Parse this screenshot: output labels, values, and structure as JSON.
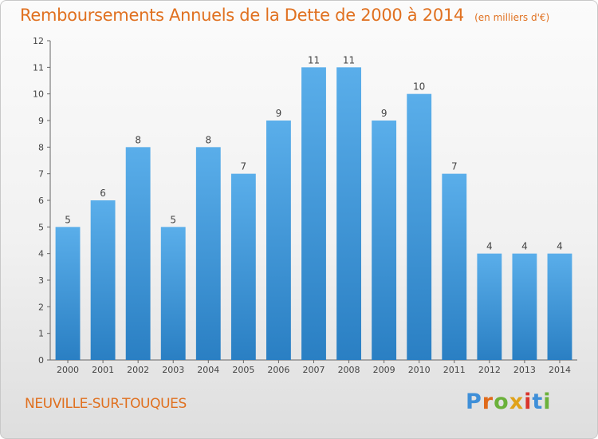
{
  "chart_data": {
    "type": "bar",
    "title": "Remboursements Annuels de la Dette de 2000 à 2014",
    "subtitle": "(en milliers d'€)",
    "categories": [
      "2000",
      "2001",
      "2002",
      "2003",
      "2004",
      "2005",
      "2006",
      "2007",
      "2008",
      "2009",
      "2010",
      "2011",
      "2012",
      "2013",
      "2014"
    ],
    "values": [
      5,
      6,
      8,
      5,
      8,
      7,
      9,
      11,
      11,
      9,
      10,
      7,
      4,
      4,
      4
    ],
    "ylim": [
      0,
      12
    ],
    "yticks": [
      0,
      1,
      2,
      3,
      4,
      5,
      6,
      7,
      8,
      9,
      10,
      11,
      12
    ],
    "grid": false,
    "xlabel": "",
    "ylabel": "",
    "bar_color_top": "#5aaeea",
    "bar_color_bottom": "#2a7fc3"
  },
  "location": "NEUVILLE-SUR-TOUQUES",
  "brand": {
    "letters": [
      "P",
      "r",
      "o",
      "x",
      "i",
      "t",
      "i"
    ],
    "colors": [
      "#3f8fd8",
      "#e06a1a",
      "#6bb13a",
      "#e0a21a",
      "#d9352c",
      "#3f8fd8",
      "#6bb13a"
    ]
  }
}
